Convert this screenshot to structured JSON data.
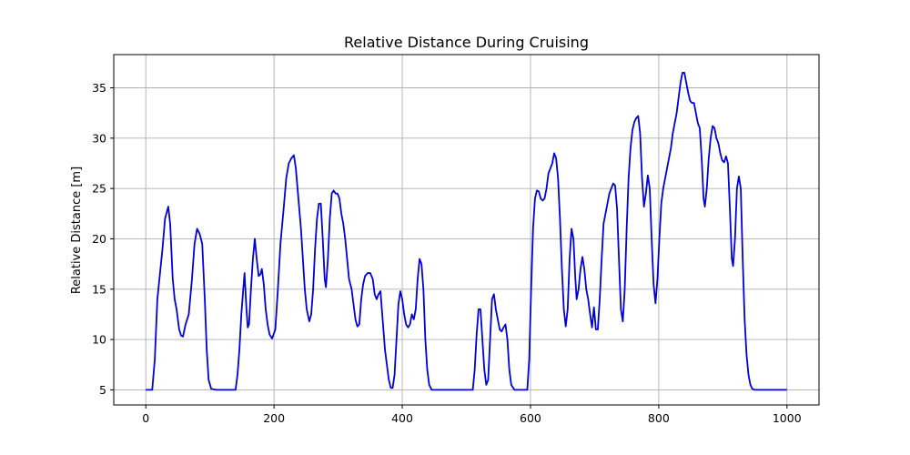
{
  "chart_data": {
    "type": "line",
    "title": "Relative Distance During Cruising",
    "xlabel": "",
    "ylabel": "Relative Distance [m]",
    "xlim": [
      -50,
      1050
    ],
    "ylim": [
      3.5,
      38.3
    ],
    "xticks": [
      0,
      200,
      400,
      600,
      800,
      1000
    ],
    "yticks": [
      5,
      10,
      15,
      20,
      25,
      30,
      35
    ],
    "grid": true,
    "color": "#0000dd",
    "series": [
      {
        "name": "",
        "points": [
          [
            0,
            5
          ],
          [
            5,
            5
          ],
          [
            10,
            5
          ],
          [
            14,
            8
          ],
          [
            18,
            14
          ],
          [
            22,
            16.5
          ],
          [
            26,
            19
          ],
          [
            30,
            22
          ],
          [
            35,
            23.2
          ],
          [
            38,
            21.5
          ],
          [
            42,
            16
          ],
          [
            45,
            14
          ],
          [
            48,
            13
          ],
          [
            52,
            11
          ],
          [
            55,
            10.4
          ],
          [
            58,
            10.3
          ],
          [
            62,
            11.5
          ],
          [
            67,
            12.5
          ],
          [
            72,
            16
          ],
          [
            76,
            19.5
          ],
          [
            80,
            21
          ],
          [
            84,
            20.5
          ],
          [
            88,
            19.5
          ],
          [
            92,
            14
          ],
          [
            95,
            9
          ],
          [
            98,
            6
          ],
          [
            102,
            5.1
          ],
          [
            110,
            5
          ],
          [
            130,
            5
          ],
          [
            140,
            5
          ],
          [
            143,
            6.5
          ],
          [
            146,
            9
          ],
          [
            149,
            12.5
          ],
          [
            152,
            15
          ],
          [
            154,
            16.6
          ],
          [
            157,
            13
          ],
          [
            159,
            11.2
          ],
          [
            161,
            11.5
          ],
          [
            164,
            15
          ],
          [
            167,
            18
          ],
          [
            170,
            20
          ],
          [
            173,
            18
          ],
          [
            176,
            16.3
          ],
          [
            179,
            16.5
          ],
          [
            181,
            17
          ],
          [
            184,
            15.5
          ],
          [
            187,
            13
          ],
          [
            190,
            11.5
          ],
          [
            193,
            10.5
          ],
          [
            197,
            10.1
          ],
          [
            202,
            11
          ],
          [
            206,
            15
          ],
          [
            210,
            19.5
          ],
          [
            215,
            23
          ],
          [
            219,
            26
          ],
          [
            223,
            27.5
          ],
          [
            227,
            28
          ],
          [
            231,
            28.3
          ],
          [
            234,
            27
          ],
          [
            238,
            24
          ],
          [
            242,
            21
          ],
          [
            245,
            18
          ],
          [
            248,
            15
          ],
          [
            251,
            13
          ],
          [
            255,
            11.8
          ],
          [
            258,
            12.5
          ],
          [
            261,
            15
          ],
          [
            264,
            19
          ],
          [
            267,
            22
          ],
          [
            270,
            23.5
          ],
          [
            273,
            23.5
          ],
          [
            276,
            20
          ],
          [
            279,
            16
          ],
          [
            281,
            15.2
          ],
          [
            284,
            18
          ],
          [
            287,
            22
          ],
          [
            290,
            24.5
          ],
          [
            293,
            24.8
          ],
          [
            296,
            24.5
          ],
          [
            299,
            24.5
          ],
          [
            302,
            24
          ],
          [
            305,
            22.5
          ],
          [
            308,
            21.5
          ],
          [
            311,
            20
          ],
          [
            314,
            18
          ],
          [
            317,
            16
          ],
          [
            321,
            15
          ],
          [
            324,
            13.5
          ],
          [
            327,
            12
          ],
          [
            330,
            11.3
          ],
          [
            333,
            11.5
          ],
          [
            336,
            14
          ],
          [
            339,
            15.5
          ],
          [
            342,
            16.3
          ],
          [
            346,
            16.6
          ],
          [
            350,
            16.6
          ],
          [
            354,
            16
          ],
          [
            357,
            14.5
          ],
          [
            360,
            14
          ],
          [
            363,
            14.5
          ],
          [
            366,
            14.8
          ],
          [
            370,
            11.5
          ],
          [
            373,
            9
          ],
          [
            376,
            7.5
          ],
          [
            379,
            6
          ],
          [
            382,
            5.2
          ],
          [
            385,
            5.2
          ],
          [
            388,
            6.5
          ],
          [
            391,
            10
          ],
          [
            394,
            13.5
          ],
          [
            397,
            14.8
          ],
          [
            400,
            14
          ],
          [
            403,
            12.5
          ],
          [
            406,
            11.5
          ],
          [
            409,
            11.2
          ],
          [
            412,
            11.5
          ],
          [
            415,
            12.5
          ],
          [
            418,
            12
          ],
          [
            421,
            13
          ],
          [
            424,
            16
          ],
          [
            427,
            18
          ],
          [
            430,
            17.5
          ],
          [
            433,
            15
          ],
          [
            436,
            10
          ],
          [
            439,
            7
          ],
          [
            442,
            5.5
          ],
          [
            446,
            5
          ],
          [
            460,
            5
          ],
          [
            480,
            5
          ],
          [
            500,
            5
          ],
          [
            510,
            5
          ],
          [
            513,
            7
          ],
          [
            516,
            10.5
          ],
          [
            519,
            13
          ],
          [
            522,
            13
          ],
          [
            525,
            10
          ],
          [
            528,
            7
          ],
          [
            531,
            5.5
          ],
          [
            534,
            6
          ],
          [
            537,
            10
          ],
          [
            540,
            14
          ],
          [
            543,
            14.5
          ],
          [
            546,
            13
          ],
          [
            549,
            12
          ],
          [
            552,
            11
          ],
          [
            555,
            10.8
          ],
          [
            558,
            11.2
          ],
          [
            561,
            11.5
          ],
          [
            564,
            10
          ],
          [
            567,
            7
          ],
          [
            570,
            5.5
          ],
          [
            575,
            5
          ],
          [
            590,
            5
          ],
          [
            595,
            5
          ],
          [
            598,
            8
          ],
          [
            601,
            15
          ],
          [
            604,
            21
          ],
          [
            607,
            24
          ],
          [
            610,
            24.8
          ],
          [
            613,
            24.7
          ],
          [
            616,
            24
          ],
          [
            619,
            23.8
          ],
          [
            622,
            24
          ],
          [
            625,
            25
          ],
          [
            628,
            26.5
          ],
          [
            631,
            27
          ],
          [
            634,
            27.5
          ],
          [
            637,
            28.5
          ],
          [
            640,
            28
          ],
          [
            643,
            26
          ],
          [
            646,
            22
          ],
          [
            649,
            17
          ],
          [
            652,
            13
          ],
          [
            655,
            11.3
          ],
          [
            658,
            13
          ],
          [
            661,
            18
          ],
          [
            664,
            21
          ],
          [
            667,
            20
          ],
          [
            670,
            16
          ],
          [
            672,
            14
          ],
          [
            675,
            15
          ],
          [
            678,
            17
          ],
          [
            681,
            18.2
          ],
          [
            684,
            17
          ],
          [
            687,
            15
          ],
          [
            690,
            14
          ],
          [
            693,
            12.5
          ],
          [
            696,
            11.2
          ],
          [
            699,
            13.2
          ],
          [
            702,
            11
          ],
          [
            705,
            11
          ],
          [
            708,
            14
          ],
          [
            711,
            18
          ],
          [
            714,
            21.5
          ],
          [
            717,
            22.5
          ],
          [
            720,
            23.5
          ],
          [
            723,
            24.5
          ],
          [
            726,
            25
          ],
          [
            729,
            25.5
          ],
          [
            732,
            25.3
          ],
          [
            735,
            23
          ],
          [
            738,
            18
          ],
          [
            741,
            13
          ],
          [
            744,
            11.8
          ],
          [
            747,
            15
          ],
          [
            750,
            21
          ],
          [
            753,
            26
          ],
          [
            756,
            29
          ],
          [
            759,
            30.8
          ],
          [
            762,
            31.6
          ],
          [
            765,
            32
          ],
          [
            768,
            32.2
          ],
          [
            771,
            30.5
          ],
          [
            774,
            26
          ],
          [
            777,
            23.2
          ],
          [
            780,
            24.5
          ],
          [
            783,
            26.3
          ],
          [
            786,
            25
          ],
          [
            789,
            20
          ],
          [
            792,
            15.5
          ],
          [
            795,
            13.6
          ],
          [
            798,
            16
          ],
          [
            801,
            20
          ],
          [
            804,
            23.5
          ],
          [
            807,
            25
          ],
          [
            810,
            26
          ],
          [
            813,
            27
          ],
          [
            816,
            28
          ],
          [
            819,
            29
          ],
          [
            822,
            30.5
          ],
          [
            825,
            31.5
          ],
          [
            828,
            32.5
          ],
          [
            831,
            34
          ],
          [
            834,
            35.5
          ],
          [
            837,
            36.5
          ],
          [
            840,
            36.5
          ],
          [
            843,
            35.5
          ],
          [
            846,
            34.5
          ],
          [
            849,
            33.7
          ],
          [
            852,
            33.5
          ],
          [
            855,
            33.5
          ],
          [
            858,
            32.5
          ],
          [
            861,
            31.5
          ],
          [
            864,
            31
          ],
          [
            867,
            28
          ],
          [
            870,
            24
          ],
          [
            872,
            23.2
          ],
          [
            875,
            25
          ],
          [
            878,
            28
          ],
          [
            881,
            30
          ],
          [
            884,
            31.2
          ],
          [
            887,
            31
          ],
          [
            890,
            30
          ],
          [
            893,
            29.5
          ],
          [
            896,
            28.5
          ],
          [
            899,
            27.8
          ],
          [
            902,
            27.6
          ],
          [
            905,
            28.2
          ],
          [
            908,
            27.5
          ],
          [
            911,
            23
          ],
          [
            914,
            18
          ],
          [
            916,
            17.3
          ],
          [
            919,
            20
          ],
          [
            922,
            25
          ],
          [
            925,
            26.2
          ],
          [
            928,
            25
          ],
          [
            931,
            18
          ],
          [
            934,
            12
          ],
          [
            937,
            8.5
          ],
          [
            940,
            6.5
          ],
          [
            943,
            5.5
          ],
          [
            946,
            5.1
          ],
          [
            950,
            5
          ],
          [
            1000,
            5
          ]
        ]
      }
    ]
  }
}
